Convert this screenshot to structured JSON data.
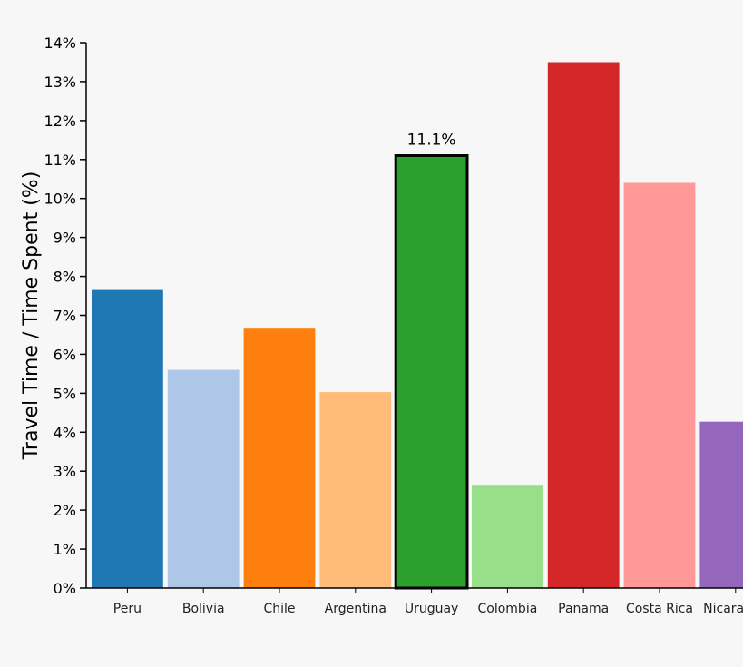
{
  "chart_data": {
    "type": "bar",
    "title": "",
    "xlabel": "",
    "ylabel": "Travel Time / Time Spent (%)",
    "ylim": [
      0,
      14
    ],
    "y_ticks": [
      "0%",
      "1%",
      "2%",
      "3%",
      "4%",
      "5%",
      "6%",
      "7%",
      "8%",
      "9%",
      "10%",
      "11%",
      "12%",
      "13%",
      "14%"
    ],
    "categories": [
      "Peru",
      "Bolivia",
      "Chile",
      "Argentina",
      "Uruguay",
      "Colombia",
      "Panama",
      "Costa Rica",
      "Nicaragua"
    ],
    "values": [
      7.65,
      5.6,
      6.68,
      5.03,
      11.1,
      2.65,
      13.5,
      10.4,
      4.27
    ],
    "colors": [
      "#1f77b4",
      "#aec7e8",
      "#ff7f0e",
      "#ffbb78",
      "#2ca02c",
      "#98df8a",
      "#d62728",
      "#ff9896",
      "#9467bd"
    ],
    "highlighted": {
      "category": "Uruguay",
      "label": "11.1%"
    },
    "grid": false,
    "legend": "none"
  }
}
